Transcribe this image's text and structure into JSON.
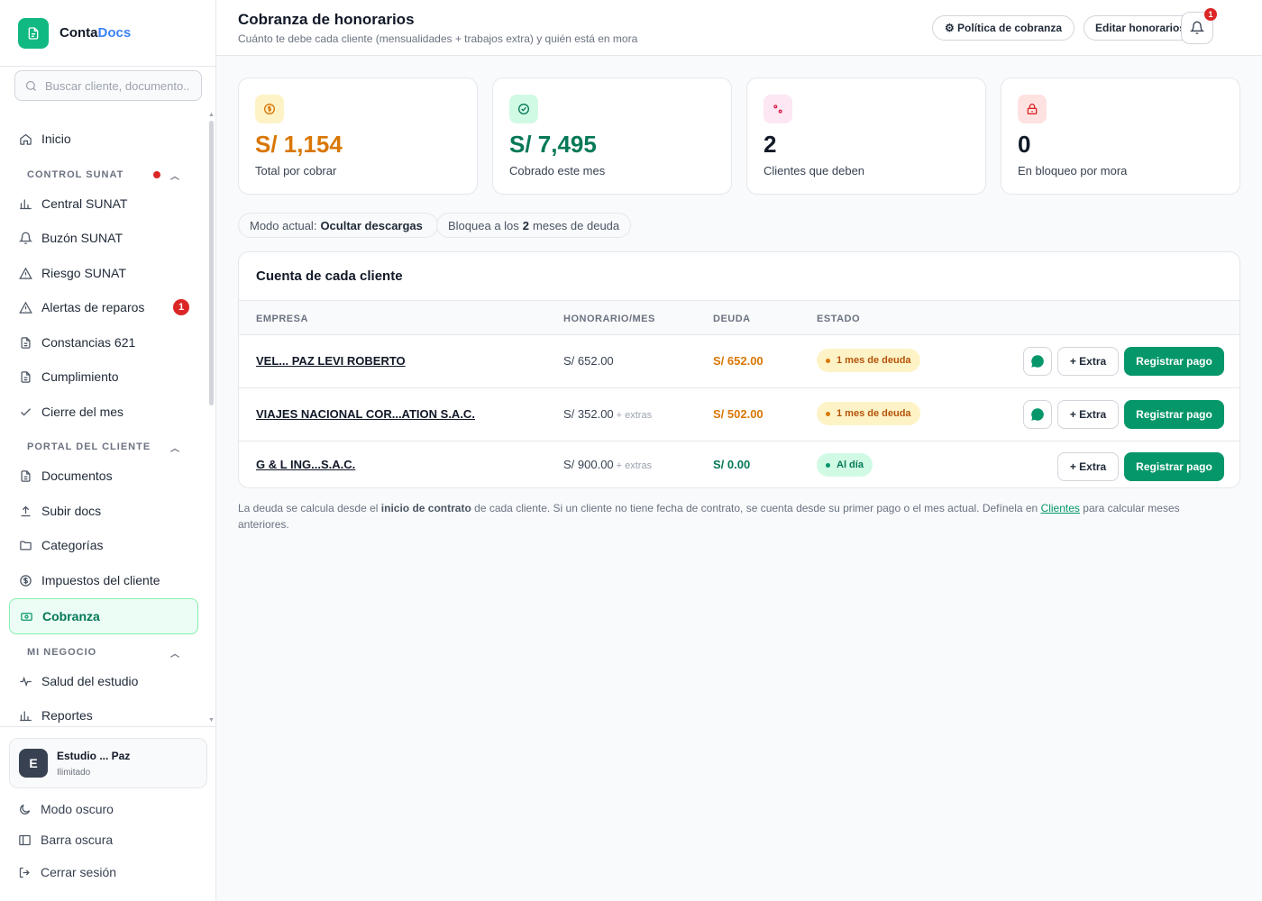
{
  "brand": {
    "name_part1": "Conta",
    "name_part2": "Docs"
  },
  "search": {
    "placeholder": "Buscar cliente, documento..."
  },
  "sidebar": {
    "inicio": "Inicio",
    "sections": {
      "control_sunat": "CONTROL SUNAT",
      "portal_cliente": "PORTAL DEL CLIENTE",
      "mi_negocio": "MI NEGOCIO"
    },
    "control_sunat_items": [
      {
        "label": "Central SUNAT",
        "icon": "bar-chart-icon"
      },
      {
        "label": "Buzón SUNAT",
        "icon": "bell-icon"
      },
      {
        "label": "Riesgo SUNAT",
        "icon": "warning-icon"
      },
      {
        "label": "Alertas de reparos",
        "icon": "warning-icon",
        "badge": "1"
      },
      {
        "label": "Constancias 621",
        "icon": "document-icon"
      },
      {
        "label": "Cumplimiento",
        "icon": "document-icon"
      },
      {
        "label": "Cierre del mes",
        "icon": "check-icon"
      }
    ],
    "portal_items": [
      {
        "label": "Documentos",
        "icon": "document-icon"
      },
      {
        "label": "Subir docs",
        "icon": "upload-icon"
      },
      {
        "label": "Categorías",
        "icon": "folder-icon"
      },
      {
        "label": "Impuestos del cliente",
        "icon": "dollar-circle-icon"
      },
      {
        "label": "Cobranza",
        "icon": "money-icon",
        "active": true
      }
    ],
    "negocio_items": [
      {
        "label": "Salud del estudio",
        "icon": "pulse-icon"
      },
      {
        "label": "Reportes",
        "icon": "bar-chart-icon"
      }
    ],
    "user": {
      "initial": "E",
      "name": "Estudio ... Paz",
      "plan": "Ilimitado"
    },
    "bottom": {
      "dark_mode": "Modo oscuro",
      "dark_bar": "Barra oscura",
      "logout": "Cerrar sesión"
    }
  },
  "header": {
    "title": "Cobranza de honorarios",
    "subtitle": "Cuánto te debe cada cliente (mensualidades + trabajos extra) y quién está en mora",
    "policy_button": "⚙ Política de cobranza",
    "edit_fees_button": "Editar honorarios",
    "notifications_count": "1"
  },
  "stats": [
    {
      "value": "S/ 1,154",
      "label": "Total por cobrar",
      "color": "#d97706"
    },
    {
      "value": "S/ 7,495",
      "label": "Cobrado este mes",
      "color": "#047857"
    },
    {
      "value": "2",
      "label": "Clientes que deben",
      "color": "#111827"
    },
    {
      "value": "0",
      "label": "En bloqueo por mora",
      "color": "#111827"
    }
  ],
  "mode_pill": {
    "prefix": "Modo actual:",
    "value": "Ocultar descargas"
  },
  "block_pill": {
    "prefix": "Bloquea a los",
    "value": "2",
    "suffix": "meses de deuda"
  },
  "table": {
    "title": "Cuenta de cada cliente",
    "headers": {
      "company": "EMPRESA",
      "fee": "HONORARIO/MES",
      "debt": "DEUDA",
      "status": "ESTADO"
    },
    "rows": [
      {
        "company": "VEL... PAZ LEVI ROBERTO",
        "fee": "S/ 652.00",
        "extras": "",
        "debt": "S/ 652.00",
        "status": "1 mes de deuda",
        "status_type": "warning",
        "whatsapp": true
      },
      {
        "company": "VIAJES NACIONAL COR...ATION S.A.C.",
        "fee": "S/ 352.00",
        "extras": "+ extras",
        "debt": "S/ 502.00",
        "status": "1 mes de deuda",
        "status_type": "warning",
        "whatsapp": true
      },
      {
        "company": "G & L ING...S.A.C.",
        "fee": "S/ 900.00",
        "extras": "+ extras",
        "debt": "S/ 0.00",
        "status": "Al día",
        "status_type": "ok",
        "whatsapp": false
      }
    ],
    "extra_button": "+ Extra",
    "pay_button": "Registrar pago"
  },
  "footnote": {
    "part1": "La deuda se calcula desde el",
    "bold": "inicio de contrato",
    "part2": "de cada cliente. Si un cliente no tiene fecha de contrato, se cuenta desde su primer pago o el mes actual. Defínela en",
    "link": "Clientes",
    "part3": "para calcular meses anteriores."
  },
  "colors": {
    "accent": "#059669",
    "warning": "#d97706",
    "danger": "#dc2626"
  }
}
